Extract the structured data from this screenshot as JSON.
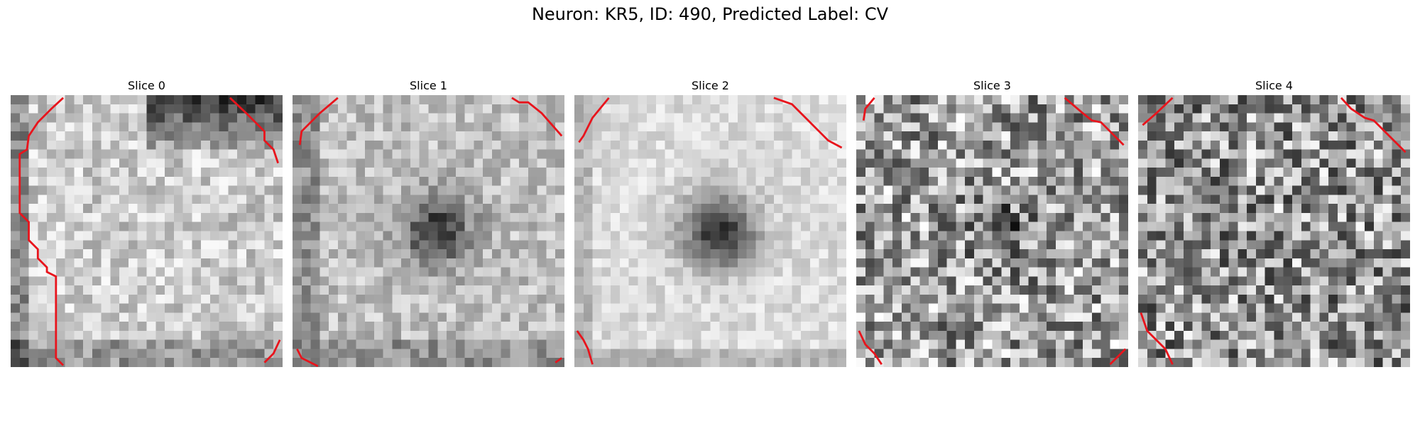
{
  "figure": {
    "suptitle": "Neuron: KR5, ID: 490, Predicted Label: CV"
  },
  "panels": [
    {
      "title": "Slice 0",
      "seed": 11,
      "style": "top-dark"
    },
    {
      "title": "Slice 1",
      "seed": 23,
      "style": "center-blob"
    },
    {
      "title": "Slice 2",
      "seed": 37,
      "style": "center-blob-bright"
    },
    {
      "title": "Slice 3",
      "seed": 41,
      "style": "noisy-center"
    },
    {
      "title": "Slice 4",
      "seed": 53,
      "style": "noisy"
    }
  ],
  "colors": {
    "contour": "#e8141c",
    "colormap": "gray"
  }
}
